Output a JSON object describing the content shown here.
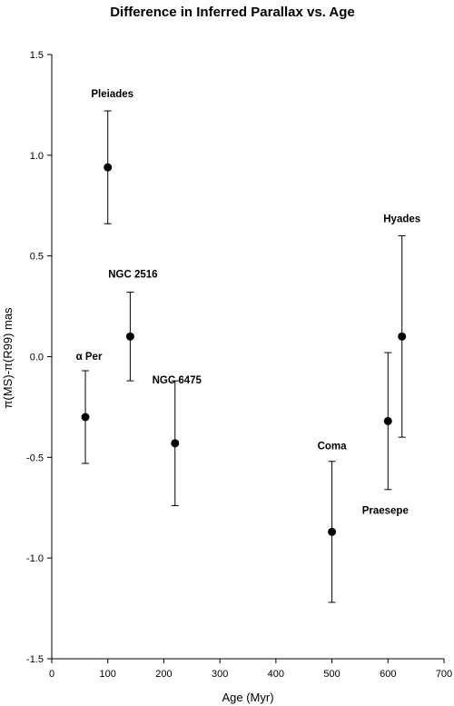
{
  "chart_data": {
    "type": "scatter",
    "title": "Difference in Inferred Parallax vs. Age",
    "xlabel": "Age (Myr)",
    "ylabel": "π(MS)-π(R99) mas",
    "xlim": [
      0,
      700
    ],
    "ylim": [
      -1.5,
      1.5
    ],
    "xticks": [
      0,
      100,
      200,
      300,
      400,
      500,
      600,
      700
    ],
    "yticks": [
      -1.5,
      -1.0,
      -0.5,
      0.0,
      0.5,
      1.0,
      1.5
    ],
    "xtick_labels": [
      "0",
      "100",
      "200",
      "300",
      "400",
      "500",
      "600",
      "700"
    ],
    "ytick_labels": [
      "-1.5",
      "-1.0",
      "-0.5",
      "0.0",
      "0.5",
      "1.0",
      "1.5"
    ],
    "grid": false,
    "points": [
      {
        "label": "α Per",
        "x": 60,
        "y": -0.3,
        "err_low": -0.53,
        "err_high": -0.07
      },
      {
        "label": "Pleiades",
        "x": 100,
        "y": 0.94,
        "err_low": 0.66,
        "err_high": 1.22
      },
      {
        "label": "NGC 2516",
        "x": 140,
        "y": 0.1,
        "err_low": -0.12,
        "err_high": 0.32
      },
      {
        "label": "NGC 6475",
        "x": 220,
        "y": -0.43,
        "err_low": -0.74,
        "err_high": -0.12
      },
      {
        "label": "Coma",
        "x": 500,
        "y": -0.87,
        "err_low": -1.22,
        "err_high": -0.52
      },
      {
        "label": "Praesepe",
        "x": 600,
        "y": -0.32,
        "err_low": -0.66,
        "err_high": 0.02
      },
      {
        "label": "Hyades",
        "x": 625,
        "y": 0.1,
        "err_low": -0.4,
        "err_high": 0.6
      }
    ]
  }
}
